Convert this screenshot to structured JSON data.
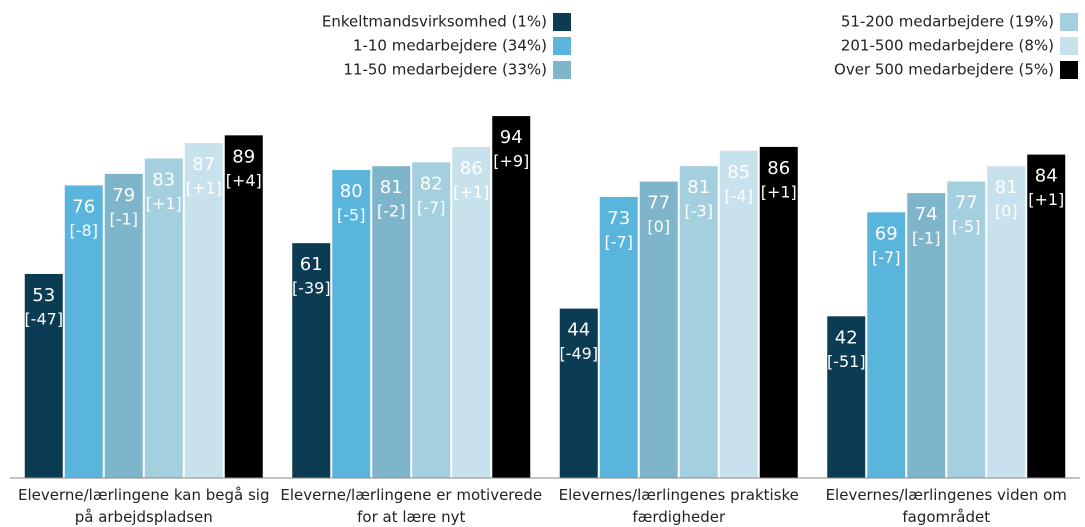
{
  "chart_data": {
    "type": "bar",
    "categories": [
      "Eleverne/lærlingene kan begå sig på arbejdspladsen",
      "Eleverne/lærlingene er motiverede for at lære nyt",
      "Elevernes/lærlingenes praktiske færdigheder",
      "Elevernes/lærlingenes viden om fagområdet"
    ],
    "series": [
      {
        "name": "Enkeltmandsvirksomhed (1%)",
        "color": "#0b3c53",
        "values": [
          53,
          61,
          44,
          42
        ],
        "change_labels": [
          "[-47]",
          "[-39]",
          "[-49]",
          "[-51]"
        ]
      },
      {
        "name": "1-10 medarbejdere (34%)",
        "color": "#5ab5dd",
        "values": [
          76,
          80,
          73,
          69
        ],
        "change_labels": [
          "[-8]",
          "[-5]",
          "[-7]",
          "[-7]"
        ]
      },
      {
        "name": "11-50 medarbejdere (33%)",
        "color": "#7eb5ca",
        "values": [
          79,
          81,
          77,
          74
        ],
        "change_labels": [
          "[-1]",
          "[-2]",
          "[0]",
          "[-1]"
        ]
      },
      {
        "name": "51-200 medarbejdere (19%)",
        "color": "#a3cfdf",
        "values": [
          83,
          82,
          81,
          77
        ],
        "change_labels": [
          "[+1]",
          "[-7]",
          "[-3]",
          "[-5]"
        ]
      },
      {
        "name": "201-500 medarbejdere (8%)",
        "color": "#c7e2ec",
        "values": [
          87,
          86,
          85,
          81
        ],
        "change_labels": [
          "[+1]",
          "[+1]",
          "[-4]",
          "[0]"
        ]
      },
      {
        "name": "Over 500 medarbejdere (5%)",
        "color": "#000000",
        "values": [
          89,
          94,
          86,
          84
        ],
        "change_labels": [
          "[+4]",
          "[+9]",
          "[+1]",
          "[+1]"
        ]
      }
    ],
    "ylim": [
      0,
      100
    ]
  }
}
